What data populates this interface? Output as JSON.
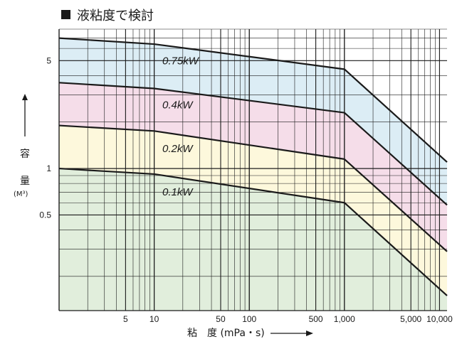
{
  "chart_data": {
    "type": "line",
    "title": "液粘度で検討",
    "xlabel": "粘　度 (mPa・s)",
    "ylabel_chars": [
      "容",
      "量"
    ],
    "ylabel_unit": "(M³)",
    "x_scale": "log",
    "y_scale": "log",
    "xlim": [
      1,
      12000
    ],
    "ylim": [
      0.12,
      8
    ],
    "grid": true,
    "x_ticks": [
      {
        "value": 5,
        "label": "5"
      },
      {
        "value": 10,
        "label": "10"
      },
      {
        "value": 50,
        "label": "50"
      },
      {
        "value": 100,
        "label": "100"
      },
      {
        "value": 500,
        "label": "500"
      },
      {
        "value": 1000,
        "label": "1,000"
      },
      {
        "value": 5000,
        "label": "5,000"
      },
      {
        "value": 10000,
        "label": "10,000"
      }
    ],
    "y_ticks": [
      {
        "value": 5,
        "label": "5"
      },
      {
        "value": 1,
        "label": "1"
      },
      {
        "value": 0.5,
        "label": "0.5"
      }
    ],
    "series": [
      {
        "name": "0.75kW",
        "color": "#dcedf5",
        "x": [
          1,
          10,
          1000,
          12000
        ],
        "y": [
          7.0,
          6.4,
          4.4,
          1.1
        ]
      },
      {
        "name": "0.4kW",
        "color": "#f5dde9",
        "x": [
          1,
          10,
          1000,
          12000
        ],
        "y": [
          3.6,
          3.3,
          2.3,
          0.58
        ]
      },
      {
        "name": "0.2kW",
        "color": "#fdf8dc",
        "x": [
          1,
          10,
          1000,
          12000
        ],
        "y": [
          1.9,
          1.75,
          1.15,
          0.29
        ]
      },
      {
        "name": "0.1kW",
        "color": "#e1eedc",
        "x": [
          1,
          10,
          1000,
          12000
        ],
        "y": [
          1.0,
          0.92,
          0.6,
          0.15
        ]
      }
    ]
  }
}
